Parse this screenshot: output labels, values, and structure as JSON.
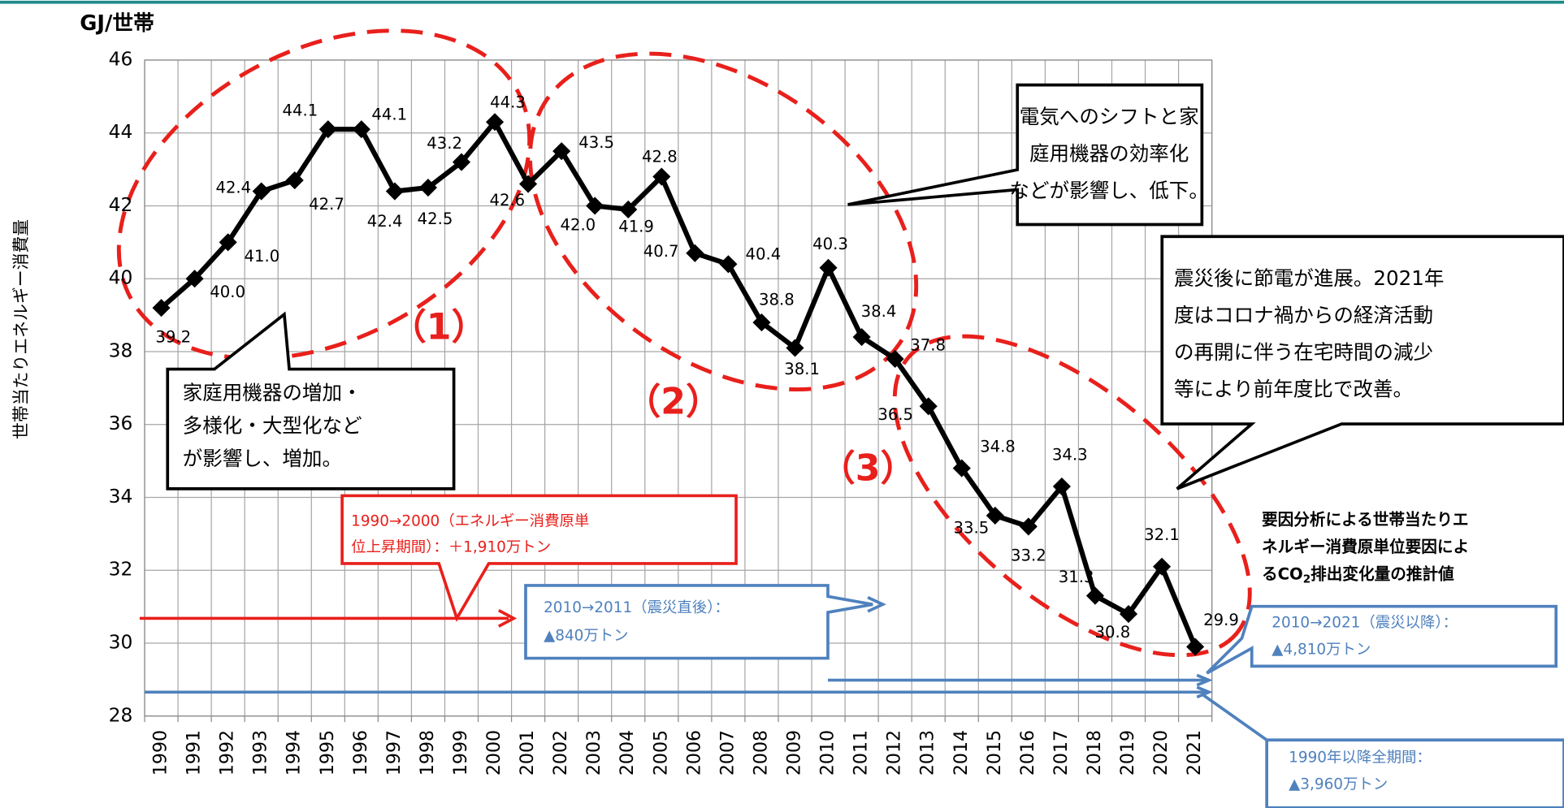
{
  "chart_data": {
    "type": "line",
    "y_unit": "GJ/世帯",
    "ylabel": "世帯当たりエネルギー消費量",
    "categories": [
      "1990",
      "1991",
      "1992",
      "1993",
      "1994",
      "1995",
      "1996",
      "1997",
      "1998",
      "1999",
      "2000",
      "2001",
      "2002",
      "2003",
      "2004",
      "2005",
      "2006",
      "2007",
      "2008",
      "2009",
      "2010",
      "2011",
      "2012",
      "2013",
      "2014",
      "2015",
      "2016",
      "2017",
      "2018",
      "2019",
      "2020",
      "2021"
    ],
    "values": [
      39.2,
      40.0,
      41.0,
      42.4,
      42.7,
      44.1,
      44.1,
      42.4,
      42.5,
      43.2,
      44.3,
      42.6,
      43.5,
      42.0,
      41.9,
      42.8,
      40.7,
      40.4,
      38.8,
      38.1,
      40.3,
      38.4,
      37.8,
      36.5,
      34.8,
      33.5,
      33.2,
      34.3,
      31.3,
      30.8,
      32.1,
      29.9
    ],
    "value_labels": [
      "39.2",
      "40.0",
      "41.0",
      "42.4",
      "42.7",
      "44.1",
      "44.1",
      "42.4",
      "42.5",
      "43.2",
      "44.3",
      "42.6",
      "43.5",
      "42.0",
      "41.9",
      "42.8",
      "40.7",
      "40.4",
      "38.8",
      "38.1",
      "40.3",
      "38.4",
      "37.8",
      "36.5",
      "34.8",
      "33.5",
      "33.2",
      "34.3",
      "31.3",
      "30.8",
      "32.1",
      "29.9"
    ],
    "color": "#000000",
    "marker": "diamond",
    "ylim": [
      28,
      46
    ],
    "yticks": [
      28,
      30,
      32,
      34,
      36,
      38,
      40,
      42,
      44,
      46
    ],
    "grid": true
  },
  "annotations": {
    "phases": [
      "（1）",
      "（2）",
      "（3）"
    ],
    "callouts": [
      {
        "lines": [
          "電気へのシフトと家",
          "庭用機器の効率化",
          "などが影響し、低下。"
        ]
      },
      {
        "lines": [
          "震災後に節電が進展。2021年",
          "度はコロナ禍からの経済活動",
          "の再開に伴う在宅時間の減少",
          "等により前年度比で改善。"
        ]
      },
      {
        "lines": [
          "家庭用機器の増加・",
          "多様化・大型化など",
          "が影響し、増加。"
        ]
      }
    ],
    "estimates": [
      {
        "lines": [
          "1990→2000（エネルギー消費原単",
          "位上昇期間）：＋1,910万トン"
        ]
      },
      {
        "lines": [
          "2010→2011（震災直後）：",
          "▲840万トン"
        ]
      },
      {
        "lines": [
          "2010→2021（震災以降）：",
          "▲4,810万トン"
        ]
      },
      {
        "lines": [
          "1990年以降全期間：",
          "▲3,960万トン"
        ]
      }
    ],
    "note": {
      "lines": [
        "要因分析による世帯当たりエ",
        "ネルギー消費原単位要因によ"
      ],
      "line3_pre": "るCO",
      "line3_sub": "2",
      "line3_post": "排出変化量の推計値"
    }
  }
}
